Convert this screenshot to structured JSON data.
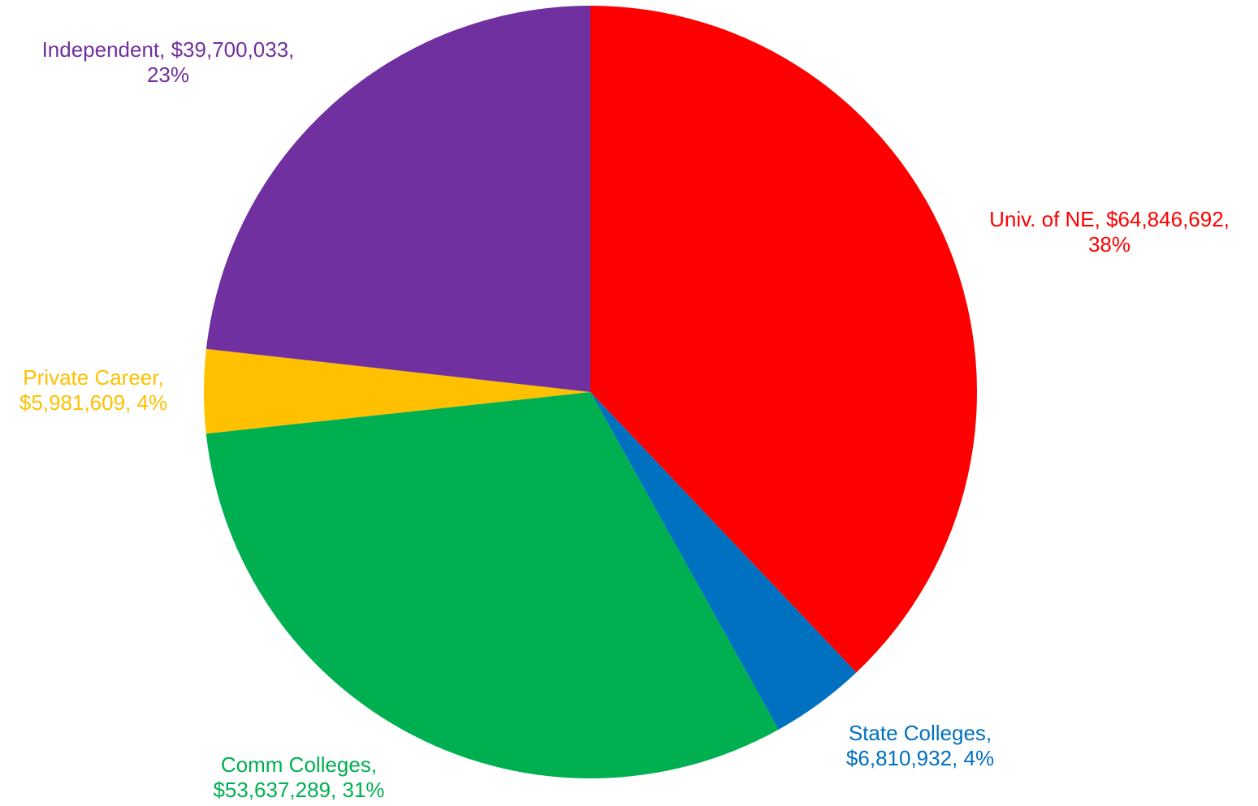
{
  "chart_data": {
    "type": "pie",
    "title": "",
    "slices": [
      {
        "name": "Univ. of NE",
        "value": 64846692,
        "value_label": "$64,846,692",
        "percent_label": "38%",
        "color": "#FF0000"
      },
      {
        "name": "State Colleges",
        "value": 6810932,
        "value_label": "$6,810,932",
        "percent_label": "4%",
        "color": "#0070C0"
      },
      {
        "name": "Comm Colleges",
        "value": 53637289,
        "value_label": "$53,637,289",
        "percent_label": "31%",
        "color": "#00B050"
      },
      {
        "name": "Private Career",
        "value": 5981609,
        "value_label": "$5,981,609",
        "percent_label": "4%",
        "color": "#FFC000"
      },
      {
        "name": "Independent",
        "value": 39700033,
        "value_label": "$39,700,033",
        "percent_label": "23%",
        "color": "#7030A0"
      }
    ],
    "start_angle_deg": 0,
    "direction": "clockwise",
    "legend": "none",
    "labels": [
      {
        "lines": [
          "Univ. of NE, $64,846,692,",
          "38%"
        ]
      },
      {
        "lines": [
          "State Colleges,",
          "$6,810,932, 4%"
        ]
      },
      {
        "lines": [
          "Comm Colleges,",
          "$53,637,289, 31%"
        ]
      },
      {
        "lines": [
          "Private Career,",
          "$5,981,609, 4%"
        ]
      },
      {
        "lines": [
          "Independent, $39,700,033,",
          "23%"
        ]
      }
    ]
  }
}
